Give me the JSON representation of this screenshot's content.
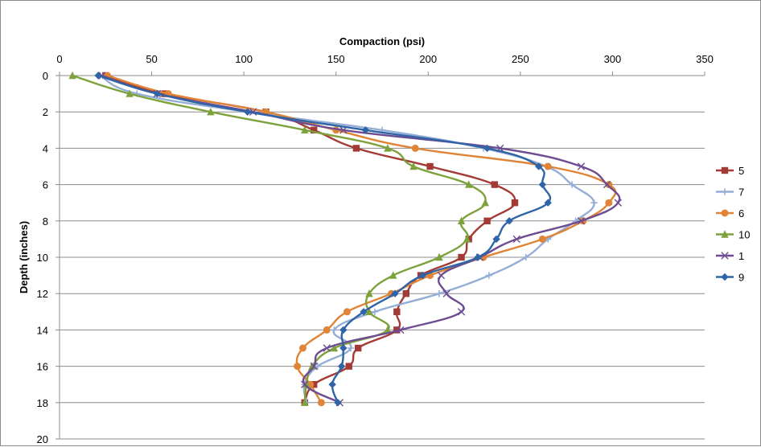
{
  "chart_data": {
    "type": "line",
    "xlabel": "Compaction (psi)",
    "ylabel": "Depth (inches)",
    "xlim": [
      0,
      350
    ],
    "ylim": [
      0,
      20
    ],
    "y_inverted": true,
    "x_axis_position": "top",
    "x_ticks": [
      0,
      50,
      100,
      150,
      200,
      250,
      300,
      350
    ],
    "y_ticks": [
      0,
      2,
      4,
      6,
      8,
      10,
      12,
      14,
      16,
      18,
      20
    ],
    "grid": "horizontal",
    "legend_position": "right",
    "y": [
      0,
      1,
      2,
      3,
      4,
      5,
      6,
      7,
      8,
      9,
      10,
      11,
      12,
      13,
      14,
      15,
      16,
      17,
      18
    ],
    "series": [
      {
        "name": "5",
        "color": "#A33A36",
        "marker": "square",
        "x": [
          25,
          57,
          112,
          138,
          161,
          201,
          236,
          247,
          232,
          222,
          218,
          196,
          188,
          183,
          183,
          162,
          157,
          138,
          133
        ]
      },
      {
        "name": "7",
        "color": "#94AED6",
        "marker": "plus",
        "x": [
          22,
          42,
          102,
          175,
          230,
          264,
          278,
          290,
          280,
          265,
          253,
          233,
          206,
          171,
          149,
          158,
          140,
          133,
          134
        ]
      },
      {
        "name": "6",
        "color": "#E08537",
        "marker": "circle",
        "x": [
          26,
          59,
          112,
          150,
          193,
          265,
          298,
          298,
          284,
          262,
          230,
          201,
          180,
          156,
          145,
          132,
          129,
          136,
          142
        ]
      },
      {
        "name": "10",
        "color": "#7EA23B",
        "marker": "triangle",
        "x": [
          7,
          38,
          82,
          133,
          178,
          192,
          222,
          231,
          218,
          221,
          206,
          181,
          168,
          168,
          178,
          149,
          137,
          134,
          133
        ]
      },
      {
        "name": "1",
        "color": "#6E4C91",
        "marker": "x",
        "x": [
          23,
          53,
          105,
          154,
          239,
          283,
          297,
          303,
          283,
          248,
          228,
          207,
          210,
          218,
          185,
          145,
          138,
          133,
          152
        ]
      },
      {
        "name": "9",
        "color": "#2F64A6",
        "marker": "diamond",
        "x": [
          21,
          53,
          102,
          166,
          232,
          260,
          262,
          265,
          244,
          237,
          227,
          197,
          182,
          165,
          154,
          154,
          153,
          148,
          151
        ]
      }
    ]
  }
}
